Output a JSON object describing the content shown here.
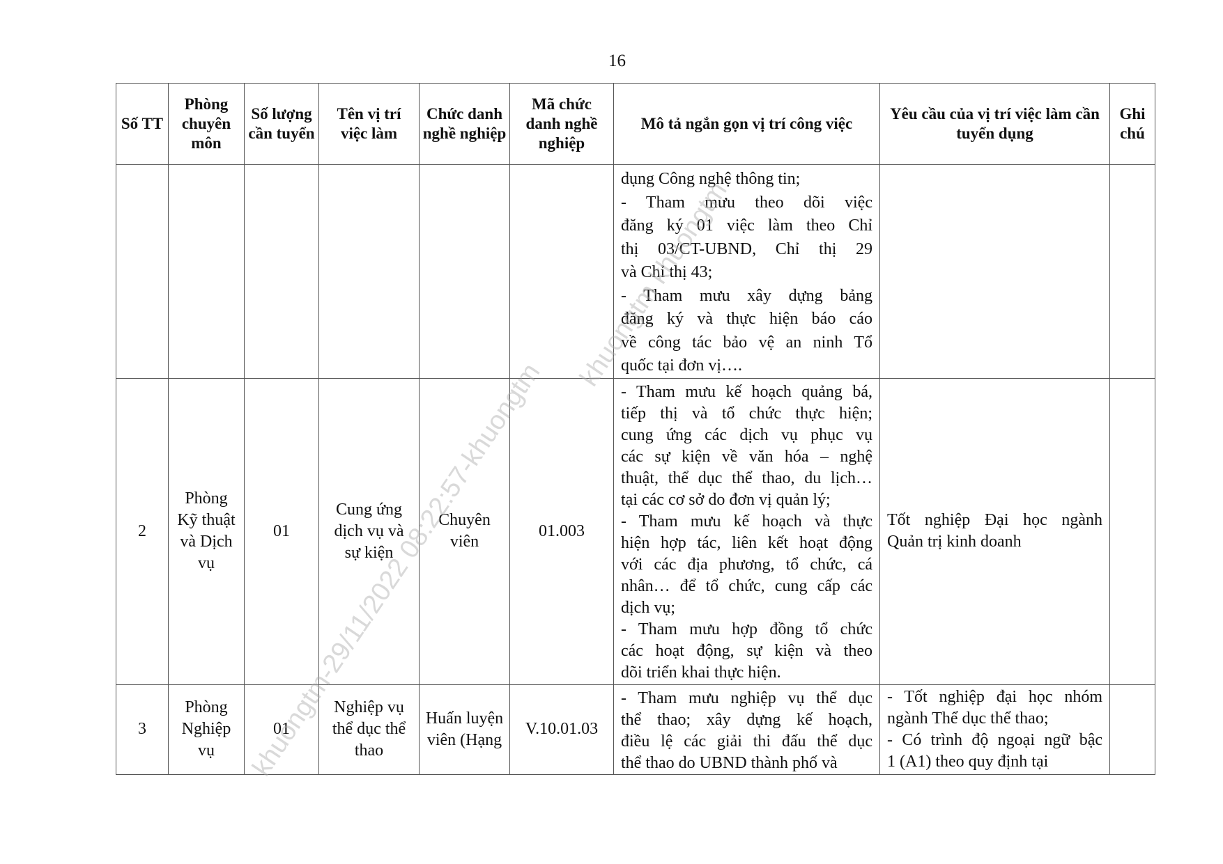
{
  "page_number": "16",
  "headers": [
    "Số TT",
    "Phòng chuyên môn",
    "Số lượng cần tuyển",
    "Tên vị trí việc làm",
    "Chức danh nghề nghiệp",
    "Mã chức danh nghề nghiệp",
    "Mô tả ngắn gọn vị trí công việc",
    "Yêu cầu của vị trí việc làm cần tuyển dụng",
    "Ghi chú"
  ],
  "rows": [
    {
      "stt": "",
      "phong": "",
      "so_luong": "",
      "ten_vi_tri": "",
      "chuc_danh": "",
      "ma_chuc_danh": "",
      "mo_ta": [
        "dụng Công nghệ thông tin;",
        "- Tham mưu theo dõi việc",
        "đăng ký 01 việc làm theo Chỉ",
        "thị 03/CT-UBND, Chỉ thị 29",
        "và Chỉ thị 43;",
        "- Tham mưu xây dựng bảng",
        "đăng ký và thực hiện báo cáo",
        "về công tác bảo vệ an ninh Tổ",
        "quốc tại đơn vị…."
      ],
      "yeu_cau": [],
      "ghi_chu": ""
    },
    {
      "stt": "2",
      "phong": "Phòng Kỹ thuật và Dịch vụ",
      "so_luong": "01",
      "ten_vi_tri": "Cung ứng dịch vụ và sự kiện",
      "chuc_danh": "Chuyên viên",
      "ma_chuc_danh": "01.003",
      "mo_ta": [
        "- Tham mưu kế hoạch quảng bá,",
        "tiếp thị và tổ chức thực hiện;",
        "cung ứng các dịch vụ phục vụ",
        "các sự kiện về văn hóa – nghệ",
        "thuật, thể dục thể thao, du lịch…",
        "tại các cơ sở do đơn vị quản lý;",
        "- Tham mưu kế hoạch và thực",
        "hiện hợp tác, liên kết hoạt động",
        "với các địa phương, tổ chức, cá",
        "nhân… để tổ chức, cung cấp các",
        "dịch vụ;",
        "- Tham mưu hợp đồng tổ chức",
        "các hoạt động, sự kiện và theo",
        "dõi triển khai thực hiện."
      ],
      "yeu_cau": [
        "Tốt nghiệp Đại học ngành",
        "Quản trị kinh doanh"
      ],
      "ghi_chu": ""
    },
    {
      "stt": "3",
      "phong": "Phòng Nghiệp vụ",
      "so_luong": "01",
      "ten_vi_tri": "Nghiệp vụ thể dục thể thao",
      "chuc_danh": "Huấn luyện viên (Hạng",
      "ma_chuc_danh": "V.10.01.03",
      "mo_ta": [
        "- Tham mưu nghiệp vụ thể dục",
        "thể thao; xây dựng kế hoạch,",
        "điều lệ các giải thi đấu thể dục",
        "thể thao do UBND thành phố và"
      ],
      "yeu_cau": [
        "- Tốt nghiệp đại học nhóm",
        "ngành Thể dục thể thao;",
        "- Có trình độ ngoại ngữ bậc",
        "1 (A1) theo quy định tại"
      ],
      "ghi_chu": ""
    }
  ],
  "watermark": [
    "khuongtm-29/11/2022 08:22:57-khuongtm",
    "khuongtm khuongtm"
  ]
}
